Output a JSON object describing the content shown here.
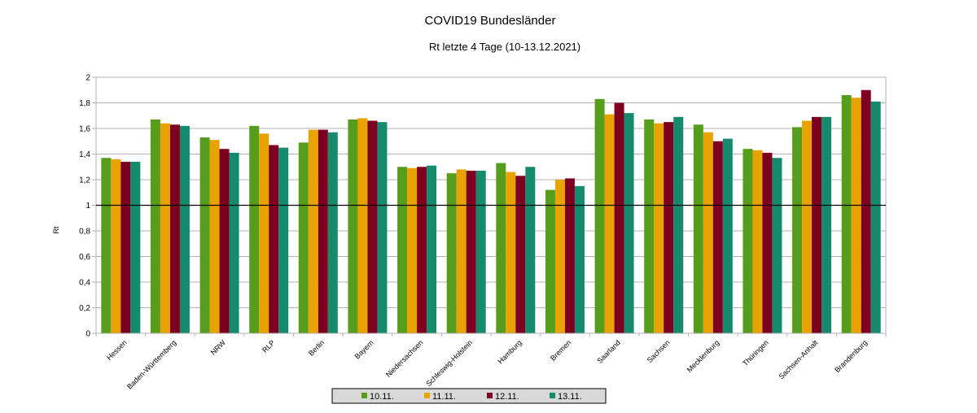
{
  "chart_data": {
    "type": "bar",
    "title": "COVID19  Bundesländer",
    "subtitle": "Rt letzte 4 Tage (10-13.12.2021)",
    "xlabel": "",
    "ylabel": "Rt",
    "ylim": [
      0,
      2
    ],
    "yticks": [
      0,
      0.2,
      0.4,
      0.6,
      0.8,
      1,
      1.2,
      1.4,
      1.6,
      1.8,
      2
    ],
    "ytick_labels": [
      "0",
      "0,2",
      "0,4",
      "0,6",
      "0,8",
      "1",
      "1,2",
      "1,4",
      "1,6",
      "1,8",
      "2"
    ],
    "reference_line": 1,
    "grid": true,
    "legend_position": "bottom",
    "categories": [
      "Hessen",
      "Baden-Württemberg",
      "NRW",
      "RLP",
      "Berlin",
      "Bayern",
      "Niedersachsen",
      "Schleswig-Holstein",
      "Hamburg",
      "Bremen",
      "Saarland",
      "Sachsen",
      "Mecklenburg",
      "Thüringen",
      "Sachsen-Anhalt",
      "Brandenburg"
    ],
    "series": [
      {
        "name": "10.11.",
        "color": "#579d1c",
        "values": [
          1.37,
          1.67,
          1.53,
          1.62,
          1.49,
          1.67,
          1.3,
          1.25,
          1.33,
          1.12,
          1.83,
          1.67,
          1.63,
          1.44,
          1.61,
          1.86
        ]
      },
      {
        "name": "11.11.",
        "color": "#e8a202",
        "values": [
          1.36,
          1.64,
          1.51,
          1.56,
          1.59,
          1.68,
          1.29,
          1.28,
          1.26,
          1.2,
          1.71,
          1.64,
          1.57,
          1.43,
          1.66,
          1.84
        ]
      },
      {
        "name": "12.11.",
        "color": "#7e0021",
        "values": [
          1.34,
          1.63,
          1.44,
          1.47,
          1.59,
          1.66,
          1.3,
          1.27,
          1.23,
          1.21,
          1.8,
          1.65,
          1.5,
          1.41,
          1.69,
          1.9
        ]
      },
      {
        "name": "13.11.",
        "color": "#168a6d",
        "values": [
          1.34,
          1.62,
          1.41,
          1.45,
          1.57,
          1.65,
          1.31,
          1.27,
          1.3,
          1.15,
          1.72,
          1.69,
          1.52,
          1.37,
          1.69,
          1.81
        ]
      }
    ]
  }
}
